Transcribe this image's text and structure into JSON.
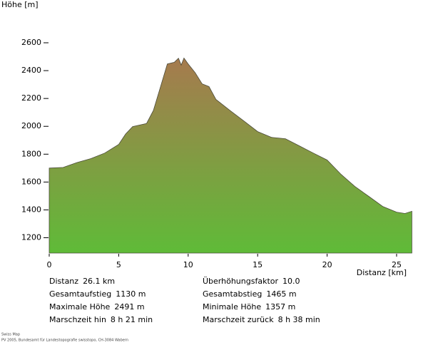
{
  "chart_data": {
    "type": "area",
    "y_label": "Höhe [m]",
    "x_label": "Distanz [km]",
    "x": [
      0,
      1,
      2,
      3,
      4,
      5,
      5.5,
      6,
      7,
      7.5,
      8,
      8.5,
      9,
      9.3,
      9.5,
      9.7,
      10,
      10.5,
      11,
      11.5,
      12,
      13,
      14,
      15,
      16,
      17,
      18,
      19,
      20,
      21,
      22,
      23,
      24,
      25,
      25.6,
      26.1
    ],
    "values": [
      1700,
      1705,
      1740,
      1768,
      1808,
      1870,
      1945,
      1998,
      2020,
      2115,
      2280,
      2448,
      2460,
      2489,
      2440,
      2490,
      2448,
      2386,
      2305,
      2285,
      2193,
      2115,
      2039,
      1962,
      1921,
      1911,
      1860,
      1808,
      1758,
      1655,
      1568,
      1497,
      1425,
      1384,
      1374,
      1390
    ],
    "xlim": [
      0,
      26.1
    ],
    "ylim": [
      1090,
      2600
    ],
    "xticks": [
      0,
      5,
      10,
      15,
      20,
      25
    ],
    "yticks": [
      1200,
      1400,
      1600,
      1800,
      2000,
      2200,
      2400,
      2600
    ],
    "color_top": "#a67a4e",
    "color_bottom": "#5fbb38"
  },
  "stats": [
    {
      "label": "Distanz",
      "value": "26.1 km"
    },
    {
      "label": "Gesamtaufstieg",
      "value": "1130 m"
    },
    {
      "label": "Maximale Höhe",
      "value": "2491 m"
    },
    {
      "label": "Marschzeit hin",
      "value": "8 h 21 min"
    },
    {
      "label": "Überhöhungsfaktor",
      "value": "10.0"
    },
    {
      "label": "Gesamtabstieg",
      "value": "1465 m"
    },
    {
      "label": "Minimale Höhe",
      "value": "1357 m"
    },
    {
      "label": "Marschzeit zurück",
      "value": "8 h 38 min"
    }
  ],
  "footer": [
    "Swiss Map",
    "PV 2005, Bundesamt für Landestopografie swisstopo, CH-3084 Wabern"
  ]
}
